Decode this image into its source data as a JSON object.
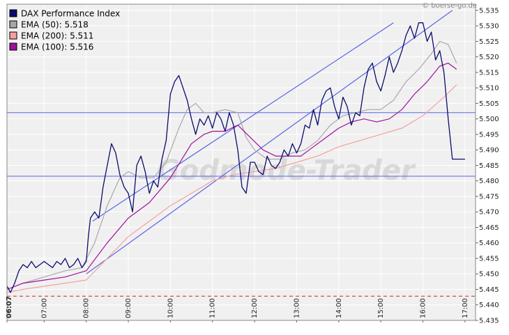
{
  "source": "© boerse-go.de",
  "watermark": "Godmode-Trader",
  "colors": {
    "plot_bg": "#f0f0f0",
    "grid": "#ffffff",
    "dax": "#0b0b6e",
    "ema50": "#a8a8a8",
    "ema200": "#f4a0a0",
    "ema100": "#a0109a",
    "trendline": "#5a64e6",
    "hline": "#5a64e6",
    "dashed_line": "#cc2222"
  },
  "chart_data": {
    "type": "line",
    "title": "",
    "xlabel": "",
    "ylabel": "",
    "ylim": [
      5.435,
      5.537
    ],
    "xlim": [
      6.117,
      17.25
    ],
    "y_ticks": [
      "5.435",
      "5.440",
      "5.445",
      "5.450",
      "5.455",
      "5.460",
      "5.465",
      "5.470",
      "5.475",
      "5.480",
      "5.485",
      "5.490",
      "5.495",
      "5.500",
      "5.505",
      "5.510",
      "5.515",
      "5.520",
      "5.525",
      "5.530",
      "5.535"
    ],
    "x_ticks": [
      {
        "x": 6.117,
        "label": "06:07"
      },
      {
        "x": 7,
        "label": "07:00"
      },
      {
        "x": 8,
        "label": "08:00"
      },
      {
        "x": 9,
        "label": "09:00"
      },
      {
        "x": 10,
        "label": "10:00"
      },
      {
        "x": 11,
        "label": "11:00"
      },
      {
        "x": 12,
        "label": "12:00"
      },
      {
        "x": 13,
        "label": "13:00"
      },
      {
        "x": 14,
        "label": "14:00"
      },
      {
        "x": 15,
        "label": "15:00"
      },
      {
        "x": 16,
        "label": "16:00"
      },
      {
        "x": 17,
        "label": "17:00"
      }
    ],
    "grid": true,
    "legend_position": "top-left",
    "legend": [
      {
        "label": "DAX Performance Index",
        "color": "#0b0b6e"
      },
      {
        "label": "EMA (50): 5.518",
        "color": "#a8a8a8"
      },
      {
        "label": "EMA (200): 5.511",
        "color": "#f4a0a0"
      },
      {
        "label": "EMA (100): 5.516",
        "color": "#a0109a"
      }
    ],
    "series": [
      {
        "name": "DAX Performance Index",
        "x": [
          6.12,
          6.2,
          6.3,
          6.4,
          6.5,
          6.6,
          6.7,
          6.8,
          6.9,
          7.0,
          7.1,
          7.2,
          7.3,
          7.4,
          7.5,
          7.6,
          7.7,
          7.8,
          7.9,
          8.0,
          8.05,
          8.1,
          8.2,
          8.3,
          8.4,
          8.5,
          8.6,
          8.7,
          8.8,
          8.9,
          9.0,
          9.1,
          9.2,
          9.3,
          9.4,
          9.5,
          9.6,
          9.7,
          9.8,
          9.9,
          10.0,
          10.1,
          10.2,
          10.3,
          10.4,
          10.5,
          10.6,
          10.7,
          10.8,
          10.9,
          11.0,
          11.1,
          11.2,
          11.3,
          11.4,
          11.5,
          11.6,
          11.7,
          11.8,
          11.9,
          12.0,
          12.1,
          12.2,
          12.3,
          12.4,
          12.5,
          12.6,
          12.7,
          12.8,
          12.9,
          13.0,
          13.1,
          13.2,
          13.3,
          13.4,
          13.5,
          13.6,
          13.7,
          13.8,
          13.9,
          14.0,
          14.1,
          14.2,
          14.3,
          14.4,
          14.5,
          14.6,
          14.7,
          14.8,
          14.9,
          15.0,
          15.1,
          15.2,
          15.3,
          15.4,
          15.5,
          15.6,
          15.7,
          15.8,
          15.9,
          16.0,
          16.1,
          16.2,
          16.3,
          16.4,
          16.5,
          16.6,
          16.7,
          16.8,
          16.9,
          17.0
        ],
        "y": [
          5.446,
          5.444,
          5.447,
          5.451,
          5.453,
          5.452,
          5.454,
          5.452,
          5.453,
          5.454,
          5.453,
          5.452,
          5.454,
          5.453,
          5.455,
          5.452,
          5.453,
          5.455,
          5.452,
          5.454,
          5.462,
          5.468,
          5.47,
          5.468,
          5.478,
          5.485,
          5.492,
          5.489,
          5.482,
          5.478,
          5.476,
          5.47,
          5.485,
          5.488,
          5.483,
          5.476,
          5.48,
          5.478,
          5.487,
          5.493,
          5.508,
          5.512,
          5.514,
          5.51,
          5.506,
          5.5,
          5.495,
          5.5,
          5.498,
          5.501,
          5.497,
          5.502,
          5.5,
          5.496,
          5.502,
          5.498,
          5.49,
          5.478,
          5.476,
          5.486,
          5.486,
          5.483,
          5.482,
          5.488,
          5.485,
          5.484,
          5.486,
          5.49,
          5.488,
          5.492,
          5.489,
          5.492,
          5.498,
          5.497,
          5.503,
          5.498,
          5.506,
          5.509,
          5.51,
          5.504,
          5.5,
          5.507,
          5.504,
          5.498,
          5.502,
          5.501,
          5.51,
          5.516,
          5.518,
          5.512,
          5.509,
          5.514,
          5.52,
          5.515,
          5.518,
          5.522,
          5.527,
          5.53,
          5.526,
          5.531,
          5.531,
          5.525,
          5.528,
          5.519,
          5.522,
          5.515,
          5.5,
          5.487,
          5.487,
          5.487,
          5.487
        ]
      },
      {
        "name": "EMA (50): 5.518",
        "x": [
          6.12,
          6.5,
          7.0,
          7.5,
          7.9,
          8.2,
          8.5,
          8.8,
          9.0,
          9.3,
          9.6,
          9.9,
          10.2,
          10.4,
          10.6,
          10.8,
          11.0,
          11.3,
          11.6,
          11.8,
          12.0,
          12.3,
          12.6,
          12.9,
          13.2,
          13.5,
          13.8,
          14.1,
          14.4,
          14.7,
          15.0,
          15.3,
          15.6,
          15.9,
          16.2,
          16.4,
          16.6,
          16.8
        ],
        "y": [
          5.445,
          5.447,
          5.449,
          5.451,
          5.452,
          5.46,
          5.472,
          5.481,
          5.483,
          5.481,
          5.481,
          5.486,
          5.497,
          5.503,
          5.505,
          5.502,
          5.502,
          5.503,
          5.502,
          5.494,
          5.49,
          5.487,
          5.487,
          5.489,
          5.49,
          5.493,
          5.498,
          5.501,
          5.502,
          5.503,
          5.503,
          5.506,
          5.512,
          5.516,
          5.521,
          5.525,
          5.524,
          5.518
        ]
      },
      {
        "name": "EMA (200): 5.511",
        "x": [
          6.12,
          6.5,
          7.0,
          7.5,
          8.0,
          8.5,
          9.0,
          9.5,
          10.0,
          10.5,
          11.0,
          11.5,
          12.0,
          12.5,
          13.0,
          13.5,
          14.0,
          14.5,
          15.0,
          15.5,
          16.0,
          16.5,
          16.8
        ],
        "y": [
          5.444,
          5.445,
          5.446,
          5.447,
          5.448,
          5.455,
          5.462,
          5.467,
          5.472,
          5.476,
          5.48,
          5.482,
          5.483,
          5.484,
          5.486,
          5.488,
          5.491,
          5.493,
          5.495,
          5.497,
          5.501,
          5.507,
          5.511
        ]
      },
      {
        "name": "EMA (100): 5.516",
        "x": [
          6.12,
          6.5,
          7.0,
          7.5,
          8.0,
          8.5,
          9.0,
          9.5,
          10.0,
          10.5,
          10.8,
          11.0,
          11.3,
          11.6,
          11.9,
          12.2,
          12.5,
          12.8,
          13.1,
          13.4,
          13.7,
          14.0,
          14.3,
          14.6,
          14.9,
          15.2,
          15.5,
          15.8,
          16.1,
          16.4,
          16.6,
          16.8
        ],
        "y": [
          5.445,
          5.447,
          5.448,
          5.449,
          5.451,
          5.46,
          5.468,
          5.473,
          5.481,
          5.492,
          5.495,
          5.496,
          5.496,
          5.498,
          5.494,
          5.49,
          5.488,
          5.488,
          5.488,
          5.491,
          5.494,
          5.497,
          5.499,
          5.5,
          5.499,
          5.5,
          5.503,
          5.508,
          5.512,
          5.517,
          5.518,
          5.516
        ]
      }
    ],
    "annotations": [
      {
        "type": "trendline",
        "x1": 8.15,
        "y1": 5.467,
        "x2": 15.3,
        "y2": 5.531
      },
      {
        "type": "trendline",
        "x1": 8.0,
        "y1": 5.45,
        "x2": 16.7,
        "y2": 5.535
      },
      {
        "type": "hline",
        "y": 5.502
      },
      {
        "type": "hline",
        "y": 5.4815
      },
      {
        "type": "hline_dashed",
        "y": 5.4428
      }
    ]
  }
}
